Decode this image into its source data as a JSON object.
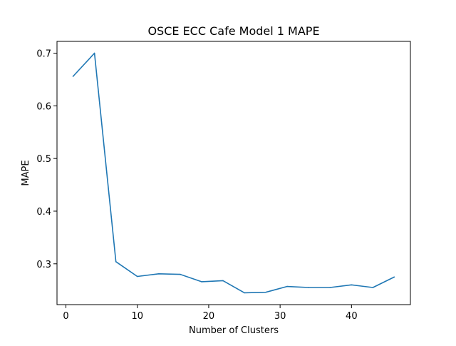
{
  "chart_data": {
    "type": "line",
    "title": "OSCE ECC Cafe Model 1 MAPE",
    "xlabel": "Number of Clusters",
    "ylabel": "MAPE",
    "xlim": [
      -1.25,
      48.25
    ],
    "ylim": [
      0.2225,
      0.7224
    ],
    "xticks": [
      0,
      10,
      20,
      30,
      40
    ],
    "xtick_labels": [
      "0",
      "10",
      "20",
      "30",
      "40"
    ],
    "yticks": [
      0.3,
      0.4,
      0.5,
      0.6,
      0.7
    ],
    "ytick_labels": [
      "0.3",
      "0.4",
      "0.5",
      "0.6",
      "0.7"
    ],
    "grid": false,
    "legend": "none",
    "series": [
      {
        "color": "#1f77b4",
        "x": [
          1,
          4,
          7,
          10,
          13,
          16,
          19,
          22,
          25,
          28,
          31,
          34,
          37,
          40,
          43,
          46
        ],
        "y": [
          0.656,
          0.7,
          0.304,
          0.276,
          0.281,
          0.28,
          0.266,
          0.268,
          0.245,
          0.246,
          0.257,
          0.255,
          0.255,
          0.26,
          0.255,
          0.275
        ]
      }
    ]
  }
}
